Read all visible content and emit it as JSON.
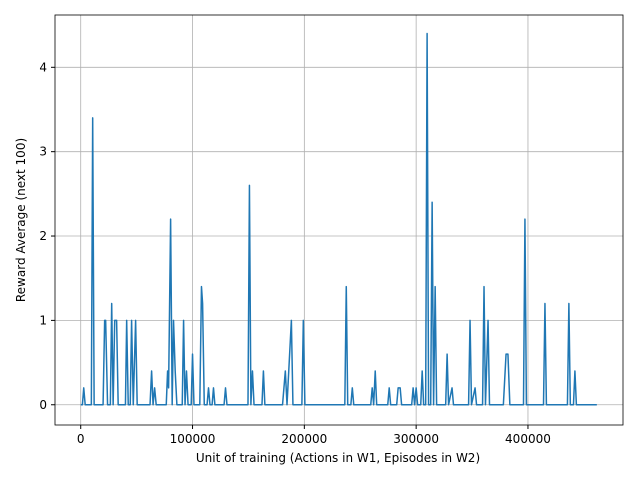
{
  "chart_data": {
    "type": "line",
    "x_label": "Unit of training (Actions in W1, Episodes in W2)",
    "y_label": "Reward Average (next 100)",
    "x": [
      0,
      1500,
      2700,
      4000,
      9500,
      10700,
      12000,
      20000,
      21400,
      22300,
      24000,
      26500,
      27700,
      29000,
      30400,
      32100,
      33500,
      40000,
      41100,
      42500,
      44300,
      45500,
      47000,
      49100,
      50500,
      62000,
      63400,
      64700,
      66100,
      67500,
      76500,
      77700,
      78600,
      80400,
      81800,
      83000,
      84500,
      86000,
      90800,
      92000,
      93300,
      94600,
      96000,
      98800,
      100000,
      101300,
      106500,
      108000,
      109000,
      110500,
      113000,
      114300,
      115600,
      117500,
      118750,
      120000,
      128200,
      129500,
      130800,
      149600,
      150900,
      152200,
      153600,
      155000,
      162100,
      163400,
      164700,
      180500,
      183000,
      184500,
      188400,
      189800,
      197800,
      199100,
      200500,
      236200,
      237500,
      238800,
      241600,
      242900,
      244200,
      259400,
      260700,
      262000,
      263400,
      264700,
      274600,
      275900,
      277200,
      282600,
      283900,
      285700,
      287000,
      296000,
      297300,
      298600,
      300000,
      301300,
      304100,
      305400,
      306700,
      308500,
      309800,
      311100,
      313000,
      314300,
      315600,
      317000,
      318300,
      326400,
      327700,
      329000,
      332100,
      333400,
      346900,
      348200,
      349500,
      352700,
      354000,
      359400,
      360700,
      362000,
      364300,
      365600,
      378000,
      380400,
      382100,
      383800,
      396000,
      397300,
      398600,
      413900,
      415200,
      416500,
      435300,
      436600,
      437900,
      440700,
      442000,
      443300,
      461600
    ],
    "series": [
      {
        "color": "#1f77b4",
        "values": [
          0,
          0,
          0.2,
          0,
          0,
          3.4,
          0,
          0,
          1.0,
          1.0,
          0,
          0,
          1.2,
          0,
          1.0,
          1.0,
          0,
          0,
          1.0,
          0,
          0,
          1.0,
          0,
          1.0,
          0,
          0,
          0.4,
          0,
          0.2,
          0,
          0,
          0.4,
          0.2,
          2.2,
          0,
          1.0,
          0.4,
          0,
          0,
          1.0,
          0,
          0.4,
          0,
          0,
          0.6,
          0,
          0,
          1.4,
          1.2,
          0,
          0,
          0.2,
          0,
          0,
          0.2,
          0,
          0,
          0.2,
          0,
          0,
          2.6,
          0,
          0.4,
          0,
          0,
          0.4,
          0,
          0,
          0.4,
          0,
          1.0,
          0,
          0,
          1.0,
          0,
          0,
          1.4,
          0,
          0,
          0.2,
          0,
          0,
          0.2,
          0,
          0.4,
          0,
          0,
          0.2,
          0,
          0,
          0.2,
          0.2,
          0,
          0,
          0.2,
          0,
          0.2,
          0,
          0,
          0.4,
          0,
          0,
          4.4,
          0,
          0,
          2.4,
          0,
          1.4,
          0,
          0,
          0.6,
          0,
          0.2,
          0,
          0,
          1.0,
          0,
          0.2,
          0,
          0,
          1.4,
          0,
          1.0,
          0,
          0,
          0.6,
          0.6,
          0,
          0,
          2.2,
          0,
          0,
          1.2,
          0,
          0,
          1.2,
          0,
          0,
          0.4,
          0,
          0
        ]
      }
    ],
    "xlim": [
      -23000,
      485000
    ],
    "ylim": [
      -0.24,
      4.62
    ],
    "xticks": [
      0,
      100000,
      200000,
      300000,
      400000
    ],
    "yticks": [
      0,
      1,
      2,
      3,
      4
    ],
    "grid": true
  }
}
